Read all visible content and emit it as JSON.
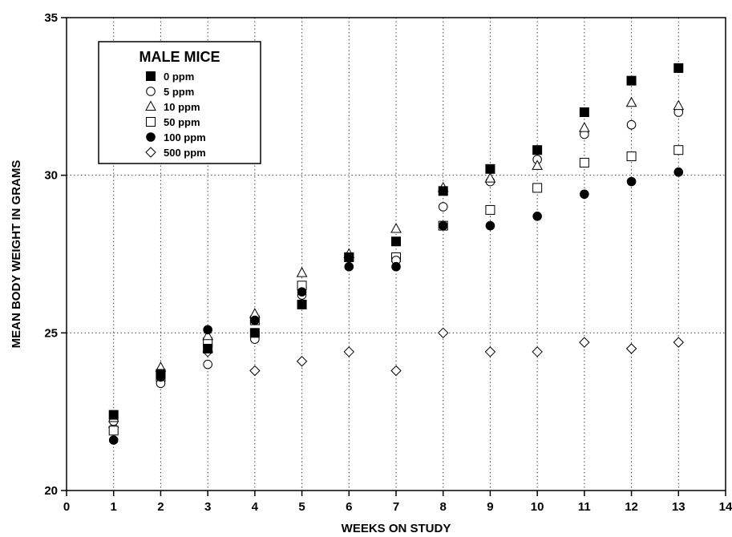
{
  "chart_data": {
    "type": "scatter",
    "title": "",
    "xlabel": "WEEKS ON STUDY",
    "ylabel": "MEAN BODY WEIGHT IN GRAMS",
    "xlim": [
      0,
      14
    ],
    "ylim": [
      20,
      35
    ],
    "xticks": [
      "0",
      "1",
      "2",
      "3",
      "4",
      "5",
      "6",
      "7",
      "8",
      "9",
      "10",
      "11",
      "12",
      "13",
      "14"
    ],
    "yticks": [
      "20",
      "25",
      "30",
      "35"
    ],
    "grid": "dotted, x at weeks 1-13, y at 25 and 30",
    "legend": {
      "title": "MALE MICE",
      "placement": "top-left"
    },
    "x": [
      1,
      2,
      3,
      4,
      5,
      6,
      7,
      8,
      9,
      10,
      11,
      12,
      13
    ],
    "series": [
      {
        "name": "0 ppm",
        "marker": "filled-square",
        "values": [
          22.4,
          23.7,
          24.5,
          25.0,
          25.9,
          27.4,
          27.9,
          29.5,
          30.2,
          30.8,
          32.0,
          33.0,
          33.4
        ]
      },
      {
        "name": "5 ppm",
        "marker": "open-circle",
        "values": [
          22.2,
          23.4,
          24.0,
          24.8,
          26.2,
          27.4,
          27.3,
          29.0,
          29.8,
          30.5,
          31.3,
          31.6,
          32.0
        ]
      },
      {
        "name": "10 ppm",
        "marker": "open-triangle",
        "values": [
          22.3,
          23.9,
          24.9,
          25.6,
          26.9,
          27.5,
          28.3,
          29.6,
          29.9,
          30.3,
          31.5,
          32.3,
          32.2
        ]
      },
      {
        "name": "50 ppm",
        "marker": "open-square",
        "values": [
          21.9,
          23.6,
          24.7,
          25.4,
          26.5,
          27.4,
          27.4,
          28.4,
          28.9,
          29.6,
          30.4,
          30.6,
          30.8
        ]
      },
      {
        "name": "100 ppm",
        "marker": "filled-circle",
        "values": [
          21.6,
          23.6,
          25.1,
          25.4,
          26.3,
          27.1,
          27.1,
          28.4,
          28.4,
          28.7,
          29.4,
          29.8,
          30.1
        ]
      },
      {
        "name": "500 ppm",
        "marker": "open-diamond",
        "values": [
          22.0,
          null,
          24.4,
          23.8,
          24.1,
          24.4,
          23.8,
          25.0,
          24.4,
          24.4,
          24.7,
          24.5,
          24.7
        ]
      }
    ]
  }
}
